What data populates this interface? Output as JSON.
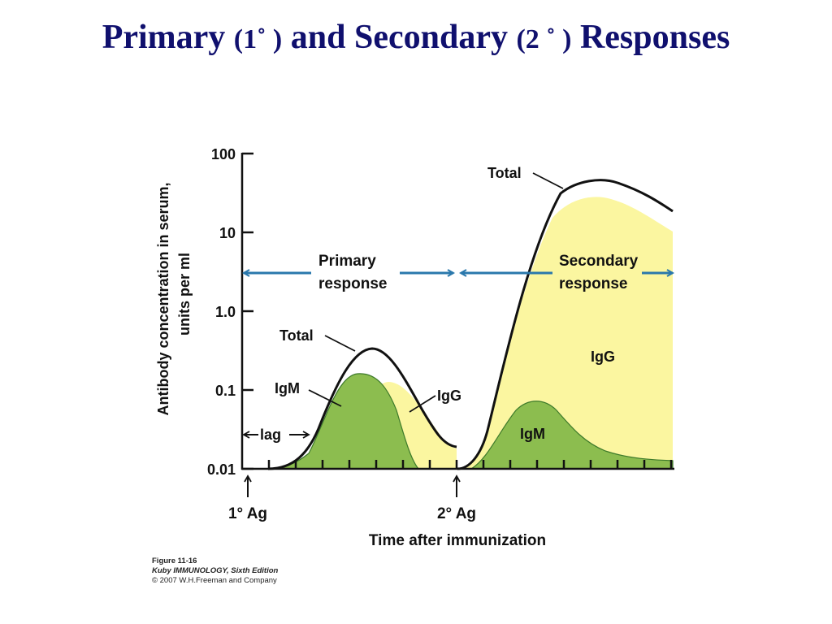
{
  "slide": {
    "title_primary": "Primary",
    "title_paren_1": "(1˚ )",
    "title_and": "and Secondary",
    "title_paren_2": "(2 ˚ )",
    "title_responses": "Responses"
  },
  "figure": {
    "y_axis_label_line1": "Antibody concentration in serum,",
    "y_axis_label_line2": "units per ml",
    "x_axis_label": "Time after immunization",
    "y_ticks": [
      "100",
      "10",
      "1.0",
      "0.1",
      "0.01"
    ],
    "labels": {
      "total_primary": "Total",
      "total_secondary": "Total",
      "igm_primary": "IgM",
      "igg_primary": "IgG",
      "igm_secondary": "IgM",
      "igg_secondary": "IgG",
      "lag": "lag",
      "primary_response_line1": "Primary",
      "primary_response_line2": "response",
      "secondary_response_line1": "Secondary",
      "secondary_response_line2": "response",
      "ag1": "1° Ag",
      "ag2": "2° Ag"
    },
    "colors": {
      "igm_fill": "#8cbd4f",
      "igg_fill": "#fbf6a0",
      "arrow_blue": "#2a78ac",
      "title_navy": "#10106e"
    }
  },
  "caption": {
    "figure_number": "Figure 11-16",
    "book": "Kuby IMMUNOLOGY, Sixth Edition",
    "copyright": "© 2007 W.H.Freeman and Company"
  }
}
